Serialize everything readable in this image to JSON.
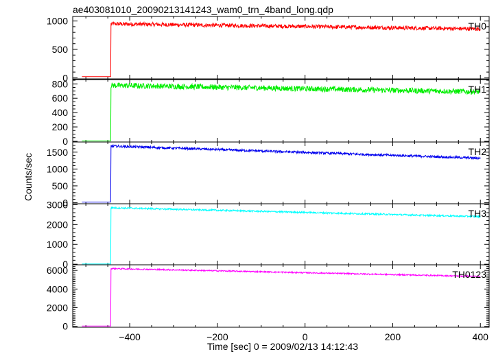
{
  "chart_data": {
    "type": "line",
    "title": "ae403081010_20090213141243_wam0_trn_4band_long.qdp",
    "xlabel": "Time [sec] 0 = 2009/02/13 14:12:43",
    "ylabel": "Counts/sec",
    "xlim": [
      -530,
      420
    ],
    "xticks": [
      -400,
      -200,
      0,
      200,
      400
    ],
    "xtick_labels": [
      "−400",
      "−200",
      "0",
      "200",
      "400"
    ],
    "grid": false,
    "panels": [
      {
        "name": "TH0",
        "color": "#ff0000",
        "ylim": [
          -20,
          1080
        ],
        "yticks": [
          0,
          500,
          1000
        ],
        "pre_level": 20,
        "onset": -443,
        "start": -509,
        "end": 400,
        "post_start": 950,
        "post_end": 860,
        "noise": 35,
        "curve": "linear"
      },
      {
        "name": "TH1",
        "color": "#00ee00",
        "ylim": [
          -10,
          860
        ],
        "yticks": [
          0,
          200,
          400,
          600,
          800
        ],
        "pre_level": 5,
        "onset": -443,
        "start": -509,
        "end": 400,
        "post_start": 780,
        "post_end": 690,
        "noise": 38,
        "curve": "linear"
      },
      {
        "name": "TH2",
        "color": "#0000ee",
        "ylim": [
          -30,
          1800
        ],
        "yticks": [
          0,
          500,
          1000,
          1500
        ],
        "pre_level": 20,
        "onset": -443,
        "start": -509,
        "end": 400,
        "post_start": 1680,
        "post_end": 1320,
        "noise": 35,
        "curve": "linear"
      },
      {
        "name": "TH3",
        "color": "#00ffff",
        "ylim": [
          -30,
          3050
        ],
        "yticks": [
          0,
          1000,
          2000,
          3000
        ],
        "pre_level": 10,
        "onset": -443,
        "start": -509,
        "end": 400,
        "post_start": 2850,
        "post_end": 2400,
        "noise": 40,
        "curve": "linear"
      },
      {
        "name": "TH0123",
        "color": "#ff00ff",
        "ylim": [
          -100,
          6600
        ],
        "yticks": [
          0,
          2000,
          4000,
          6000
        ],
        "pre_level": 30,
        "onset": -443,
        "start": -509,
        "end": 400,
        "post_start": 6200,
        "post_end": 5350,
        "noise": 70,
        "curve": "linear"
      }
    ]
  }
}
